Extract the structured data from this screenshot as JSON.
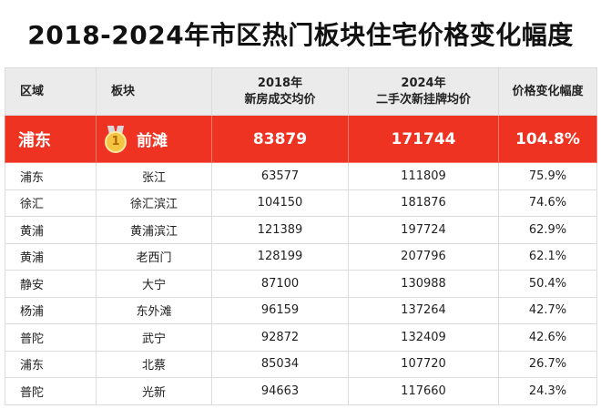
{
  "title": "2018-2024年市区热门板块住宅价格变化幅度",
  "headers": {
    "region": "区域",
    "block": "板块",
    "new2018_line1": "2018年",
    "new2018_line2": "新房成交均价",
    "used2024_line1": "2024年",
    "used2024_line2": "二手次新挂牌均价",
    "change": "价格变化幅度"
  },
  "top": {
    "rank": "1",
    "region": "浦东",
    "block": "前滩",
    "new2018": "83879",
    "used2024": "171744",
    "change": "104.8%"
  },
  "rows": [
    {
      "region": "浦东",
      "block": "张江",
      "new2018": "63577",
      "used2024": "111809",
      "change": "75.9%"
    },
    {
      "region": "徐汇",
      "block": "徐汇滨江",
      "new2018": "104150",
      "used2024": "181876",
      "change": "74.6%"
    },
    {
      "region": "黄浦",
      "block": "黄浦滨江",
      "new2018": "121389",
      "used2024": "197724",
      "change": "62.9%"
    },
    {
      "region": "黄浦",
      "block": "老西门",
      "new2018": "128199",
      "used2024": "207796",
      "change": "62.1%"
    },
    {
      "region": "静安",
      "block": "大宁",
      "new2018": "87100",
      "used2024": "130988",
      "change": "50.4%"
    },
    {
      "region": "杨浦",
      "block": "东外滩",
      "new2018": "96159",
      "used2024": "137264",
      "change": "42.7%"
    },
    {
      "region": "普陀",
      "block": "武宁",
      "new2018": "92872",
      "used2024": "132409",
      "change": "42.6%"
    },
    {
      "region": "浦东",
      "block": "北蔡",
      "new2018": "85034",
      "used2024": "107720",
      "change": "26.7%"
    },
    {
      "region": "普陀",
      "block": "光新",
      "new2018": "94663",
      "used2024": "117660",
      "change": "24.3%"
    }
  ]
}
